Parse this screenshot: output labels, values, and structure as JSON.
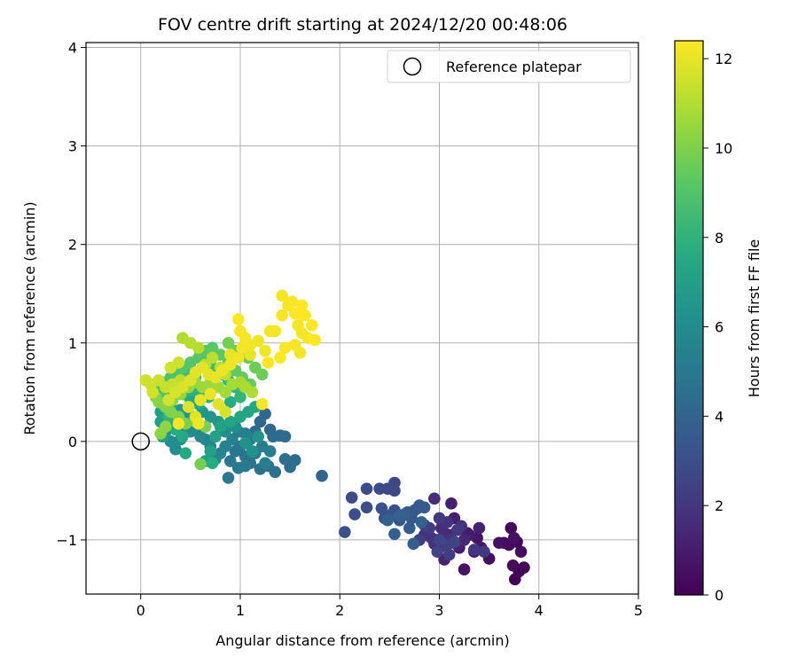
{
  "chart_data": {
    "type": "scatter",
    "title": "FOV centre drift starting at 2024/12/20 00:48:06",
    "xlabel": "Angular distance from reference (arcmin)",
    "ylabel": "Rotation from reference (arcmin)",
    "xlim": [
      -0.55,
      5.0
    ],
    "ylim": [
      -1.55,
      4.05
    ],
    "xticks": [
      0,
      1,
      2,
      3,
      4,
      5
    ],
    "yticks": [
      -1,
      0,
      1,
      2,
      3,
      4
    ],
    "ytick_labels": [
      "−1",
      "0",
      "1",
      "2",
      "3",
      "4"
    ],
    "grid": true,
    "legend": {
      "position": "top-right",
      "entries": [
        {
          "label": "Reference platepar",
          "marker": "hollow-circle",
          "color": "#000000"
        }
      ]
    },
    "reference_point": {
      "x": 0,
      "y": 0
    },
    "colorbar": {
      "label": "Hours from first FF file",
      "min": 0,
      "max": 12.4,
      "ticks": [
        0,
        2,
        4,
        6,
        8,
        10,
        12
      ],
      "colormap": "viridis"
    },
    "points": [
      [
        3.76,
        -1.4,
        0.05
      ],
      [
        3.85,
        -1.28,
        0.1
      ],
      [
        3.8,
        -1.32,
        0.15
      ],
      [
        3.72,
        -0.88,
        0.2
      ],
      [
        3.78,
        -1.02,
        0.25
      ],
      [
        3.7,
        -1.05,
        0.3
      ],
      [
        3.65,
        -1.03,
        0.35
      ],
      [
        3.74,
        -1.26,
        0.4
      ],
      [
        3.82,
        -1.12,
        0.45
      ],
      [
        3.5,
        -1.19,
        0.5
      ],
      [
        3.6,
        -1.03,
        0.6
      ],
      [
        3.75,
        -0.98,
        0.65
      ],
      [
        3.25,
        -1.3,
        0.7
      ],
      [
        3.38,
        -0.98,
        0.75
      ],
      [
        3.42,
        -1.08,
        0.8
      ],
      [
        3.28,
        -0.93,
        0.85
      ],
      [
        3.2,
        -1.08,
        0.9
      ],
      [
        3.35,
        -1.12,
        0.95
      ],
      [
        3.3,
        -0.95,
        1.0
      ],
      [
        3.15,
        -0.78,
        1.05
      ],
      [
        3.12,
        -0.63,
        1.1
      ],
      [
        3.4,
        -0.88,
        1.15
      ],
      [
        3.05,
        -1.2,
        1.2
      ],
      [
        3.1,
        -0.95,
        1.25
      ],
      [
        3.18,
        -1.05,
        1.3
      ],
      [
        3.0,
        -1.08,
        1.35
      ],
      [
        3.25,
        -1.0,
        1.4
      ],
      [
        3.05,
        -0.93,
        1.45
      ],
      [
        2.98,
        -1.0,
        1.5
      ],
      [
        2.95,
        -0.58,
        1.55
      ],
      [
        3.02,
        -0.88,
        1.6
      ],
      [
        2.88,
        -0.92,
        1.65
      ],
      [
        2.95,
        -1.04,
        1.7
      ],
      [
        2.85,
        -0.95,
        1.75
      ],
      [
        3.08,
        -0.82,
        1.8
      ],
      [
        3.22,
        -0.86,
        1.85
      ],
      [
        2.92,
        -0.98,
        1.9
      ],
      [
        3.12,
        -1.0,
        1.95
      ],
      [
        3.35,
        -1.1,
        2.0
      ],
      [
        3.45,
        -1.12,
        2.05
      ],
      [
        3.18,
        -0.9,
        2.1
      ],
      [
        3.0,
        -0.78,
        2.15
      ],
      [
        2.9,
        -0.88,
        2.2
      ],
      [
        3.1,
        -1.15,
        2.25
      ],
      [
        2.8,
        -1.0,
        2.3
      ],
      [
        3.08,
        -1.05,
        2.4
      ],
      [
        2.85,
        -0.85,
        2.45
      ],
      [
        3.15,
        -1.02,
        2.5
      ],
      [
        2.98,
        -1.12,
        2.55
      ],
      [
        3.0,
        -1.0,
        2.6
      ],
      [
        2.55,
        -0.42,
        2.65
      ],
      [
        2.55,
        -0.5,
        2.7
      ],
      [
        2.48,
        -0.48,
        2.75
      ],
      [
        2.4,
        -0.48,
        2.8
      ],
      [
        2.27,
        -0.48,
        2.85
      ],
      [
        2.12,
        -0.57,
        2.9
      ],
      [
        2.15,
        -0.74,
        2.95
      ],
      [
        2.27,
        -0.67,
        3.0
      ],
      [
        2.05,
        -0.92,
        3.05
      ],
      [
        2.42,
        -0.68,
        3.1
      ],
      [
        2.45,
        -0.78,
        3.15
      ],
      [
        2.5,
        -0.75,
        3.2
      ],
      [
        2.55,
        -0.7,
        3.25
      ],
      [
        2.6,
        -0.8,
        3.3
      ],
      [
        2.68,
        -0.72,
        3.35
      ],
      [
        2.72,
        -0.78,
        3.4
      ],
      [
        2.75,
        -0.7,
        3.45
      ],
      [
        2.78,
        -0.68,
        3.5
      ],
      [
        2.8,
        -0.65,
        3.55
      ],
      [
        2.85,
        -0.67,
        3.6
      ],
      [
        2.7,
        -0.88,
        3.65
      ],
      [
        2.55,
        -0.94,
        3.7
      ],
      [
        2.74,
        -1.04,
        3.75
      ],
      [
        2.65,
        -0.74,
        3.8
      ],
      [
        2.48,
        -0.8,
        3.85
      ],
      [
        2.6,
        -0.75,
        3.9
      ],
      [
        2.82,
        -0.82,
        3.95
      ],
      [
        1.82,
        -0.35,
        4.0
      ],
      [
        1.25,
        0.28,
        4.1
      ],
      [
        1.3,
        0.12,
        4.15
      ],
      [
        1.2,
        0.2,
        4.2
      ],
      [
        1.15,
        0.1,
        4.25
      ],
      [
        1.45,
        0.05,
        4.3
      ],
      [
        1.4,
        0.06,
        4.35
      ],
      [
        1.33,
        0.05,
        4.4
      ],
      [
        1.55,
        -0.19,
        4.45
      ],
      [
        1.5,
        -0.26,
        4.5
      ],
      [
        1.45,
        -0.18,
        4.55
      ],
      [
        1.35,
        -0.31,
        4.6
      ],
      [
        1.28,
        -0.25,
        4.65
      ],
      [
        1.2,
        -0.28,
        4.7
      ],
      [
        1.1,
        -0.22,
        4.75
      ],
      [
        1.05,
        -0.15,
        4.8
      ],
      [
        1.0,
        -0.05,
        4.85
      ],
      [
        0.95,
        -0.1,
        4.9
      ],
      [
        0.9,
        -0.2,
        4.95
      ],
      [
        0.88,
        -0.37,
        5.0
      ],
      [
        0.98,
        -0.27,
        5.05
      ],
      [
        1.05,
        -0.25,
        5.1
      ],
      [
        1.15,
        -0.12,
        5.15
      ],
      [
        1.22,
        -0.05,
        5.2
      ],
      [
        1.3,
        -0.1,
        5.25
      ],
      [
        1.25,
        -0.22,
        5.3
      ],
      [
        1.1,
        0.02,
        5.35
      ],
      [
        1.05,
        0.08,
        5.4
      ],
      [
        0.98,
        0.1,
        5.45
      ],
      [
        0.92,
        0.02,
        5.5
      ],
      [
        0.85,
        -0.05,
        5.55
      ],
      [
        0.8,
        -0.12,
        5.6
      ],
      [
        0.75,
        -0.18,
        5.65
      ],
      [
        0.7,
        -0.05,
        5.7
      ],
      [
        0.65,
        0.02,
        5.75
      ],
      [
        0.6,
        0.05,
        5.8
      ],
      [
        0.55,
        0.12,
        5.85
      ],
      [
        0.5,
        0.1,
        5.9
      ],
      [
        0.45,
        0.15,
        5.95
      ],
      [
        0.4,
        0.02,
        6.0
      ],
      [
        0.35,
        -0.08,
        6.05
      ],
      [
        0.3,
        0.0,
        6.1
      ],
      [
        0.25,
        0.1,
        6.15
      ],
      [
        0.85,
        0.1,
        6.2
      ],
      [
        0.95,
        0.15,
        6.25
      ],
      [
        1.05,
        -0.02,
        6.3
      ],
      [
        1.12,
        -0.1,
        6.35
      ],
      [
        1.18,
        0.05,
        6.4
      ],
      [
        0.78,
        0.2,
        6.45
      ],
      [
        0.7,
        0.25,
        6.5
      ],
      [
        0.62,
        0.3,
        6.55
      ],
      [
        0.55,
        0.22,
        6.6
      ],
      [
        0.48,
        0.28,
        6.65
      ],
      [
        0.4,
        0.32,
        6.7
      ],
      [
        0.32,
        0.2,
        6.75
      ],
      [
        0.28,
        0.15,
        6.8
      ],
      [
        0.22,
        0.05,
        6.85
      ],
      [
        0.2,
        0.2,
        6.9
      ],
      [
        0.2,
        0.3,
        6.95
      ],
      [
        0.65,
        -0.2,
        7.0
      ],
      [
        0.7,
        -0.1,
        7.05
      ],
      [
        0.75,
        0.05,
        7.1
      ],
      [
        0.8,
        0.15,
        7.15
      ],
      [
        0.9,
        0.2,
        7.2
      ],
      [
        1.0,
        0.25,
        7.25
      ],
      [
        1.08,
        0.3,
        7.3
      ],
      [
        1.15,
        0.35,
        7.35
      ],
      [
        0.58,
        0.38,
        7.4
      ],
      [
        0.5,
        0.42,
        7.45
      ],
      [
        0.45,
        -0.12,
        7.5
      ],
      [
        0.42,
        0.05,
        7.55
      ],
      [
        0.35,
        0.12,
        7.6
      ],
      [
        0.3,
        0.38,
        7.65
      ],
      [
        0.72,
        -0.22,
        7.7
      ],
      [
        0.9,
        0.4,
        7.75
      ],
      [
        0.68,
        0.45,
        7.8
      ],
      [
        0.6,
        0.5,
        7.85
      ],
      [
        0.52,
        0.52,
        7.9
      ],
      [
        0.42,
        0.48,
        7.95
      ],
      [
        0.38,
        0.55,
        8.0
      ],
      [
        0.32,
        0.6,
        8.05
      ],
      [
        0.28,
        0.25,
        8.1
      ],
      [
        1.0,
        0.45,
        8.15
      ],
      [
        0.95,
        0.55,
        8.2
      ],
      [
        0.88,
        0.62,
        8.25
      ],
      [
        0.8,
        0.68,
        8.3
      ],
      [
        0.75,
        0.72,
        8.35
      ],
      [
        0.7,
        0.8,
        8.4
      ],
      [
        0.65,
        0.85,
        8.45
      ],
      [
        0.6,
        0.9,
        8.5
      ],
      [
        0.55,
        0.65,
        8.55
      ],
      [
        0.45,
        0.7,
        8.6
      ],
      [
        0.4,
        0.62,
        8.65
      ],
      [
        0.22,
        0.38,
        8.7
      ],
      [
        0.25,
        0.45,
        8.75
      ],
      [
        0.2,
        0.5,
        8.8
      ],
      [
        0.18,
        0.55,
        8.85
      ],
      [
        0.22,
        0.6,
        8.9
      ],
      [
        0.3,
        0.65,
        8.95
      ],
      [
        0.35,
        0.7,
        9.0
      ],
      [
        0.42,
        0.75,
        9.05
      ],
      [
        0.5,
        0.8,
        9.1
      ],
      [
        0.58,
        0.85,
        9.15
      ],
      [
        0.65,
        0.92,
        9.2
      ],
      [
        0.72,
        0.95,
        9.25
      ],
      [
        0.8,
        0.88,
        9.3
      ],
      [
        0.88,
        0.8,
        9.35
      ],
      [
        0.95,
        0.72,
        9.4
      ],
      [
        1.02,
        0.65,
        9.45
      ],
      [
        1.1,
        0.58,
        9.5
      ],
      [
        1.08,
        0.85,
        9.55
      ],
      [
        1.15,
        0.75,
        9.6
      ],
      [
        1.22,
        0.68,
        9.65
      ],
      [
        0.95,
        0.92,
        9.7
      ],
      [
        0.88,
        1.0,
        9.75
      ],
      [
        0.6,
        -0.23,
        9.8
      ],
      [
        0.65,
        0.15,
        9.85
      ],
      [
        0.55,
        0.2,
        9.9
      ],
      [
        0.45,
        0.18,
        9.95
      ],
      [
        0.38,
        0.25,
        10.0
      ],
      [
        0.3,
        0.3,
        10.05
      ],
      [
        0.25,
        0.35,
        10.1
      ],
      [
        0.18,
        0.4,
        10.15
      ],
      [
        0.15,
        0.45,
        10.2
      ],
      [
        0.2,
        0.08,
        10.25
      ],
      [
        0.25,
        0.15,
        10.3
      ],
      [
        0.32,
        0.42,
        10.35
      ],
      [
        0.4,
        0.48,
        10.4
      ],
      [
        0.48,
        0.55,
        10.45
      ],
      [
        0.55,
        0.6,
        10.5
      ],
      [
        0.62,
        0.55,
        10.55
      ],
      [
        0.7,
        0.6,
        10.6
      ],
      [
        0.78,
        0.55,
        10.65
      ],
      [
        0.85,
        0.5,
        10.7
      ],
      [
        0.92,
        0.58,
        10.75
      ],
      [
        1.0,
        0.6,
        10.8
      ],
      [
        1.05,
        0.55,
        10.85
      ],
      [
        1.12,
        0.5,
        10.9
      ],
      [
        0.42,
        1.05,
        10.95
      ],
      [
        0.5,
        1.0,
        11.0
      ],
      [
        0.58,
        0.95,
        11.05
      ],
      [
        0.65,
        0.78,
        11.1
      ],
      [
        0.72,
        0.85,
        11.15
      ],
      [
        0.8,
        0.75,
        11.2
      ],
      [
        0.85,
        0.68,
        11.25
      ],
      [
        0.4,
        0.62,
        11.3
      ],
      [
        0.32,
        0.58,
        11.35
      ],
      [
        0.25,
        0.55,
        11.4
      ],
      [
        0.18,
        0.62,
        11.45
      ],
      [
        0.1,
        0.58,
        11.5
      ],
      [
        0.05,
        0.62,
        11.55
      ],
      [
        0.12,
        0.5,
        11.6
      ],
      [
        0.28,
        0.42,
        11.65
      ],
      [
        0.35,
        0.5,
        11.7
      ],
      [
        0.42,
        0.55,
        11.75
      ],
      [
        0.5,
        0.62,
        11.8
      ],
      [
        0.55,
        0.7,
        11.85
      ],
      [
        0.62,
        0.75,
        11.9
      ],
      [
        0.68,
        0.68,
        11.95
      ],
      [
        0.75,
        0.65,
        12.0
      ],
      [
        0.82,
        0.72,
        12.05
      ],
      [
        0.9,
        0.78,
        12.1
      ],
      [
        0.98,
        0.85,
        12.15
      ],
      [
        1.02,
        0.95,
        12.2
      ],
      [
        1.05,
        1.05,
        12.25
      ],
      [
        1.0,
        1.12,
        12.3
      ],
      [
        0.98,
        1.24,
        12.35
      ],
      [
        1.1,
        0.88,
        12.0
      ],
      [
        1.18,
        1.02,
        12.1
      ],
      [
        1.25,
        0.92,
        12.15
      ],
      [
        1.3,
        1.12,
        12.2
      ],
      [
        1.35,
        1.12,
        12.25
      ],
      [
        1.28,
        0.8,
        12.3
      ],
      [
        1.4,
        0.85,
        12.35
      ],
      [
        1.45,
        0.95,
        12.4
      ],
      [
        1.42,
        1.28,
        12.3
      ],
      [
        1.42,
        1.48,
        12.2
      ],
      [
        1.48,
        1.38,
        12.25
      ],
      [
        1.52,
        1.42,
        12.3
      ],
      [
        1.55,
        1.3,
        12.35
      ],
      [
        1.6,
        1.3,
        12.4
      ],
      [
        1.62,
        1.38,
        12.35
      ],
      [
        1.65,
        1.28,
        12.3
      ],
      [
        1.58,
        1.18,
        12.25
      ],
      [
        1.62,
        1.1,
        12.2
      ],
      [
        1.68,
        1.05,
        12.3
      ],
      [
        1.72,
        1.18,
        12.35
      ],
      [
        1.75,
        1.03,
        12.4
      ],
      [
        1.55,
        0.98,
        12.3
      ],
      [
        1.6,
        0.9,
        12.2
      ],
      [
        1.22,
        0.38,
        12.25
      ],
      [
        1.1,
        0.98,
        12.15
      ],
      [
        0.9,
        0.88,
        12.0
      ],
      [
        0.38,
        0.18,
        12.2
      ],
      [
        0.58,
        0.18,
        12.1
      ],
      [
        0.55,
        0.25,
        11.9
      ],
      [
        0.48,
        0.35,
        11.8
      ],
      [
        0.6,
        0.42,
        11.95
      ],
      [
        0.7,
        0.48,
        12.05
      ],
      [
        0.78,
        0.38,
        11.85
      ],
      [
        0.85,
        0.3,
        11.7
      ],
      [
        0.3,
        0.75,
        11.6
      ],
      [
        0.38,
        0.8,
        11.5
      ]
    ]
  }
}
